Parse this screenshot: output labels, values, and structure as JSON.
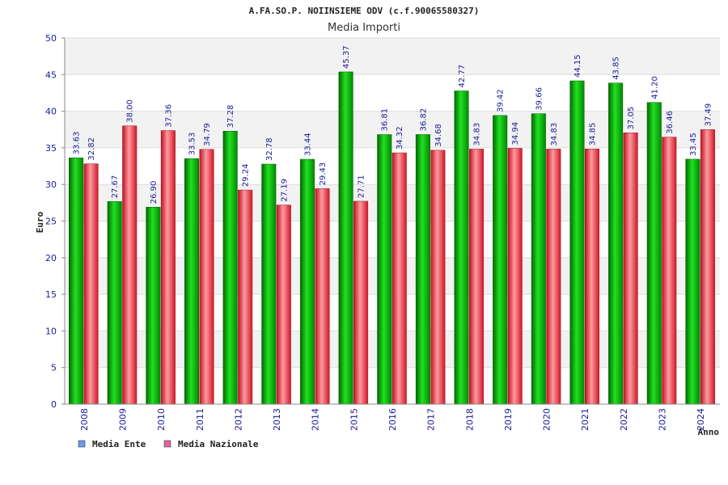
{
  "chart_data": {
    "type": "bar",
    "title": "A.FA.SO.P. NOIINSIEME ODV (c.f.90065580327)",
    "subtitle": "Media Importi",
    "ylabel": "Euro",
    "xlabel": "Anno",
    "ylim": [
      0,
      50
    ],
    "yticks": [
      0,
      5,
      10,
      15,
      20,
      25,
      30,
      35,
      40,
      45,
      50
    ],
    "grid": true,
    "legend_position": "bottom-left",
    "categories": [
      "2008",
      "2009",
      "2010",
      "2011",
      "2012",
      "2013",
      "2014",
      "2015",
      "2016",
      "2017",
      "2018",
      "2019",
      "2020",
      "2021",
      "2022",
      "2023",
      "2024"
    ],
    "series": [
      {
        "name": "Media Ente",
        "color": "#00a000",
        "legend_color": "#6699ee",
        "values": [
          33.63,
          27.67,
          26.9,
          33.53,
          37.28,
          32.78,
          33.44,
          45.37,
          36.81,
          36.82,
          42.77,
          39.42,
          39.66,
          44.15,
          43.85,
          41.2,
          33.45
        ],
        "labels": [
          "33.63",
          "27.67",
          "26.90",
          "33.53",
          "37.28",
          "32.78",
          "33.44",
          "45.37",
          "36.81",
          "36.82",
          "42.77",
          "39.42",
          "39.66",
          "44.15",
          "43.85",
          "41.20",
          "33.45"
        ]
      },
      {
        "name": "Media Nazionale",
        "color": "#e0303a",
        "legend_color": "#dd6699",
        "values": [
          32.82,
          38.0,
          37.36,
          34.79,
          29.24,
          27.19,
          29.43,
          27.71,
          34.32,
          34.68,
          34.83,
          34.94,
          34.83,
          34.85,
          37.05,
          36.46,
          37.49
        ],
        "labels": [
          "32.82",
          "38.00",
          "37.36",
          "34.79",
          "29.24",
          "27.19",
          "29.43",
          "27.71",
          "34.32",
          "34.68",
          "34.83",
          "34.94",
          "34.83",
          "34.85",
          "37.05",
          "36.46",
          "37.49"
        ]
      }
    ]
  }
}
